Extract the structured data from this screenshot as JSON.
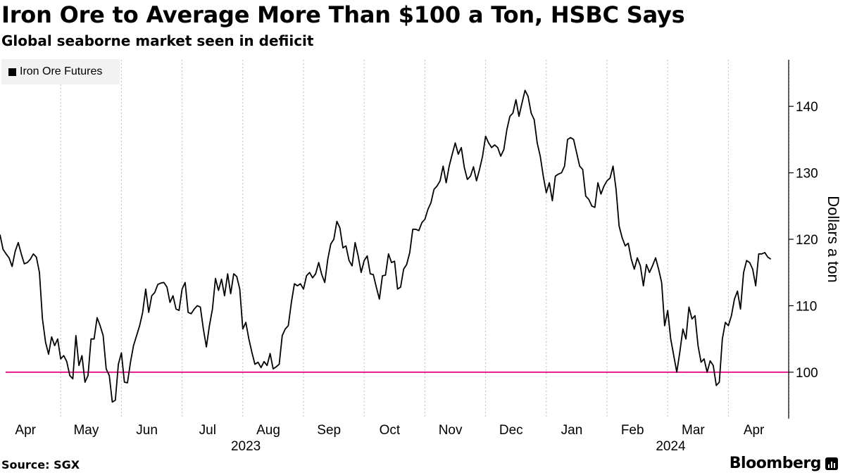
{
  "title": "Iron Ore to Average More Than $100 a Ton, HSBC Says",
  "subtitle": "Global seaborne market seen in defiicit",
  "source": "Source: SGX",
  "brand": "Bloomberg",
  "colors": {
    "series": "#000000",
    "reference_line": "#e5007e",
    "grid": "#bdbdbd",
    "legend_bg": "#f2f2f2"
  },
  "chart_data": {
    "type": "line",
    "title": "Iron Ore to Average More Than $100 a Ton, HSBC Says",
    "subtitle": "Global seaborne market seen in defiicit",
    "xlabel": "",
    "ylabel": "Dollars a ton",
    "ylim": [
      93,
      147
    ],
    "yticks": [
      100,
      110,
      120,
      130,
      140
    ],
    "grid": "vertical dotted",
    "legend": {
      "position": "top-left",
      "entries": [
        "Iron Ore Futures"
      ]
    },
    "x_months": [
      "Apr",
      "May",
      "Jun",
      "Jul",
      "Aug",
      "Sep",
      "Oct",
      "Nov",
      "Dec",
      "Jan",
      "Feb",
      "Mar",
      "Apr"
    ],
    "year_labels": [
      {
        "label": "2023",
        "month_index": 4
      },
      {
        "label": "2024",
        "month_index": 11
      }
    ],
    "x_domain_months": [
      0,
      13.2
    ],
    "reference_line": {
      "value": 100,
      "color": "#e5007e"
    },
    "series": [
      {
        "name": "Iron Ore Futures",
        "x_unit": "months since 1 Apr 2023",
        "points": [
          [
            0,
            120.7
          ],
          [
            0.05,
            118.5
          ],
          [
            0.1,
            117.8
          ],
          [
            0.15,
            117.2
          ],
          [
            0.2,
            115.9
          ],
          [
            0.25,
            118.2
          ],
          [
            0.3,
            119.5
          ],
          [
            0.35,
            117.8
          ],
          [
            0.4,
            116.3
          ],
          [
            0.45,
            116.5
          ],
          [
            0.5,
            117.0
          ],
          [
            0.55,
            117.8
          ],
          [
            0.6,
            117.3
          ],
          [
            0.65,
            115.0
          ],
          [
            0.7,
            108.0
          ],
          [
            0.75,
            104.5
          ],
          [
            0.8,
            102.7
          ],
          [
            0.85,
            105.3
          ],
          [
            0.9,
            104.0
          ],
          [
            0.95,
            105.0
          ],
          [
            1.0,
            102.0
          ],
          [
            1.05,
            102.5
          ],
          [
            1.1,
            101.6
          ],
          [
            1.15,
            99.5
          ],
          [
            1.2,
            99.0
          ],
          [
            1.25,
            105.5
          ],
          [
            1.3,
            101.0
          ],
          [
            1.35,
            102.5
          ],
          [
            1.4,
            98.5
          ],
          [
            1.45,
            99.5
          ],
          [
            1.5,
            105.0
          ],
          [
            1.55,
            105.0
          ],
          [
            1.6,
            108.2
          ],
          [
            1.65,
            107.0
          ],
          [
            1.7,
            105.5
          ],
          [
            1.75,
            100.5
          ],
          [
            1.8,
            99.5
          ],
          [
            1.85,
            95.5
          ],
          [
            1.9,
            95.8
          ],
          [
            1.95,
            101.2
          ],
          [
            2.0,
            102.9
          ],
          [
            2.05,
            98.5
          ],
          [
            2.1,
            98.4
          ],
          [
            2.15,
            101.5
          ],
          [
            2.2,
            104.0
          ],
          [
            2.25,
            105.5
          ],
          [
            2.3,
            107.0
          ],
          [
            2.35,
            109.0
          ],
          [
            2.4,
            112.5
          ],
          [
            2.45,
            109.0
          ],
          [
            2.5,
            111.5
          ],
          [
            2.55,
            112.0
          ],
          [
            2.6,
            113.2
          ],
          [
            2.65,
            113.4
          ],
          [
            2.7,
            113.5
          ],
          [
            2.75,
            112.8
          ],
          [
            2.8,
            110.5
          ],
          [
            2.85,
            111.5
          ],
          [
            2.9,
            109.5
          ],
          [
            2.95,
            109.3
          ],
          [
            3.0,
            112.5
          ],
          [
            3.05,
            113.5
          ],
          [
            3.1,
            109.0
          ],
          [
            3.15,
            108.8
          ],
          [
            3.2,
            109.5
          ],
          [
            3.25,
            110.0
          ],
          [
            3.3,
            109.8
          ],
          [
            3.35,
            106.5
          ],
          [
            3.4,
            103.8
          ],
          [
            3.45,
            107.0
          ],
          [
            3.5,
            109.5
          ],
          [
            3.55,
            114.1
          ],
          [
            3.6,
            112.3
          ],
          [
            3.65,
            114.0
          ],
          [
            3.7,
            111.5
          ],
          [
            3.75,
            114.8
          ],
          [
            3.8,
            111.8
          ],
          [
            3.85,
            114.8
          ],
          [
            3.9,
            114.4
          ],
          [
            3.95,
            112.5
          ],
          [
            4.0,
            106.5
          ],
          [
            4.05,
            107.5
          ],
          [
            4.1,
            105.0
          ],
          [
            4.15,
            103.0
          ],
          [
            4.2,
            101.2
          ],
          [
            4.25,
            101.5
          ],
          [
            4.3,
            100.7
          ],
          [
            4.35,
            101.6
          ],
          [
            4.4,
            101.0
          ],
          [
            4.45,
            102.8
          ],
          [
            4.5,
            100.5
          ],
          [
            4.55,
            100.8
          ],
          [
            4.6,
            101.2
          ],
          [
            4.65,
            105.5
          ],
          [
            4.7,
            106.5
          ],
          [
            4.75,
            107.0
          ],
          [
            4.8,
            110.5
          ],
          [
            4.85,
            113.3
          ],
          [
            4.9,
            113.0
          ],
          [
            4.95,
            113.3
          ],
          [
            5.0,
            112.5
          ],
          [
            5.05,
            114.5
          ],
          [
            5.1,
            115.0
          ],
          [
            5.15,
            114.2
          ],
          [
            5.2,
            114.8
          ],
          [
            5.25,
            116.5
          ],
          [
            5.3,
            114.7
          ],
          [
            5.35,
            113.5
          ],
          [
            5.4,
            117.0
          ],
          [
            5.45,
            119.3
          ],
          [
            5.5,
            120.0
          ],
          [
            5.55,
            122.7
          ],
          [
            5.6,
            121.7
          ],
          [
            5.65,
            118.7
          ],
          [
            5.7,
            119.0
          ],
          [
            5.75,
            116.8
          ],
          [
            5.8,
            116.0
          ],
          [
            5.85,
            119.5
          ],
          [
            5.9,
            117.5
          ],
          [
            5.95,
            115.0
          ],
          [
            6.0,
            116.8
          ],
          [
            6.05,
            117.5
          ],
          [
            6.1,
            114.8
          ],
          [
            6.15,
            114.7
          ],
          [
            6.2,
            112.8
          ],
          [
            6.25,
            111.0
          ],
          [
            6.3,
            114.5
          ],
          [
            6.35,
            114.6
          ],
          [
            6.4,
            117.8
          ],
          [
            6.45,
            116.5
          ],
          [
            6.5,
            116.7
          ],
          [
            6.55,
            112.5
          ],
          [
            6.6,
            112.8
          ],
          [
            6.65,
            115.5
          ],
          [
            6.7,
            116.2
          ],
          [
            6.75,
            118.0
          ],
          [
            6.8,
            121.5
          ],
          [
            6.85,
            121.5
          ],
          [
            6.9,
            121.3
          ],
          [
            6.95,
            122.5
          ],
          [
            7.0,
            123.0
          ],
          [
            7.05,
            124.5
          ],
          [
            7.1,
            125.5
          ],
          [
            7.15,
            127.5
          ],
          [
            7.2,
            128.0
          ],
          [
            7.25,
            128.8
          ],
          [
            7.3,
            131.0
          ],
          [
            7.35,
            128.5
          ],
          [
            7.4,
            131.0
          ],
          [
            7.45,
            132.8
          ],
          [
            7.5,
            134.5
          ],
          [
            7.55,
            132.8
          ],
          [
            7.6,
            133.8
          ],
          [
            7.65,
            130.8
          ],
          [
            7.7,
            129.0
          ],
          [
            7.75,
            129.5
          ],
          [
            7.8,
            130.9
          ],
          [
            7.85,
            128.8
          ],
          [
            7.9,
            130.5
          ],
          [
            7.95,
            132.5
          ],
          [
            8.0,
            135.5
          ],
          [
            8.05,
            134.5
          ],
          [
            8.1,
            133.8
          ],
          [
            8.15,
            134.2
          ],
          [
            8.2,
            133.8
          ],
          [
            8.25,
            132.5
          ],
          [
            8.3,
            133.5
          ],
          [
            8.35,
            136.5
          ],
          [
            8.4,
            138.5
          ],
          [
            8.45,
            139.0
          ],
          [
            8.5,
            141.0
          ],
          [
            8.55,
            138.5
          ],
          [
            8.6,
            140.5
          ],
          [
            8.65,
            142.4
          ],
          [
            8.7,
            141.5
          ],
          [
            8.75,
            139.0
          ],
          [
            8.8,
            138.0
          ],
          [
            8.85,
            134.5
          ],
          [
            8.9,
            132.5
          ],
          [
            8.95,
            129.5
          ],
          [
            9.0,
            127.0
          ],
          [
            9.05,
            128.5
          ],
          [
            9.1,
            125.8
          ],
          [
            9.15,
            129.5
          ],
          [
            9.2,
            129.8
          ],
          [
            9.25,
            130.0
          ],
          [
            9.3,
            131.0
          ],
          [
            9.35,
            135.0
          ],
          [
            9.4,
            135.3
          ],
          [
            9.45,
            135.0
          ],
          [
            9.5,
            133.0
          ],
          [
            9.55,
            131.0
          ],
          [
            9.6,
            130.5
          ],
          [
            9.65,
            126.5
          ],
          [
            9.7,
            126.0
          ],
          [
            9.75,
            125.0
          ],
          [
            9.8,
            124.8
          ],
          [
            9.85,
            128.5
          ],
          [
            9.9,
            126.8
          ],
          [
            9.95,
            128.0
          ],
          [
            10.0,
            128.8
          ],
          [
            10.05,
            129.2
          ],
          [
            10.1,
            131.0
          ],
          [
            10.15,
            127.5
          ],
          [
            10.2,
            122.0
          ],
          [
            10.25,
            120.2
          ],
          [
            10.3,
            119.0
          ],
          [
            10.35,
            119.4
          ],
          [
            10.4,
            117.0
          ],
          [
            10.45,
            115.5
          ],
          [
            10.5,
            117.2
          ],
          [
            10.55,
            116.0
          ],
          [
            10.6,
            113.0
          ],
          [
            10.65,
            116.2
          ],
          [
            10.7,
            115.0
          ],
          [
            10.75,
            116.0
          ],
          [
            10.8,
            117.2
          ],
          [
            10.85,
            115.5
          ],
          [
            10.9,
            113.5
          ],
          [
            10.95,
            107.0
          ],
          [
            11.0,
            109.3
          ],
          [
            11.05,
            105.0
          ],
          [
            11.1,
            102.5
          ],
          [
            11.15,
            100.0
          ],
          [
            11.2,
            103.0
          ],
          [
            11.25,
            106.5
          ],
          [
            11.3,
            105.0
          ],
          [
            11.35,
            109.8
          ],
          [
            11.4,
            108.0
          ],
          [
            11.45,
            108.5
          ],
          [
            11.5,
            104.0
          ],
          [
            11.55,
            101.5
          ],
          [
            11.6,
            102.0
          ],
          [
            11.65,
            100.0
          ],
          [
            11.7,
            101.7
          ],
          [
            11.75,
            101.0
          ],
          [
            11.8,
            98.0
          ],
          [
            11.85,
            98.5
          ],
          [
            11.9,
            105.0
          ],
          [
            11.95,
            107.5
          ],
          [
            12.0,
            107.0
          ],
          [
            12.05,
            108.5
          ],
          [
            12.1,
            111.0
          ],
          [
            12.15,
            112.2
          ],
          [
            12.2,
            109.5
          ],
          [
            12.25,
            115.0
          ],
          [
            12.3,
            116.8
          ],
          [
            12.35,
            116.5
          ],
          [
            12.4,
            115.5
          ],
          [
            12.45,
            113.0
          ],
          [
            12.5,
            117.8
          ],
          [
            12.55,
            117.8
          ],
          [
            12.6,
            118.0
          ],
          [
            12.65,
            117.3
          ],
          [
            12.7,
            117.0
          ]
        ]
      }
    ]
  }
}
